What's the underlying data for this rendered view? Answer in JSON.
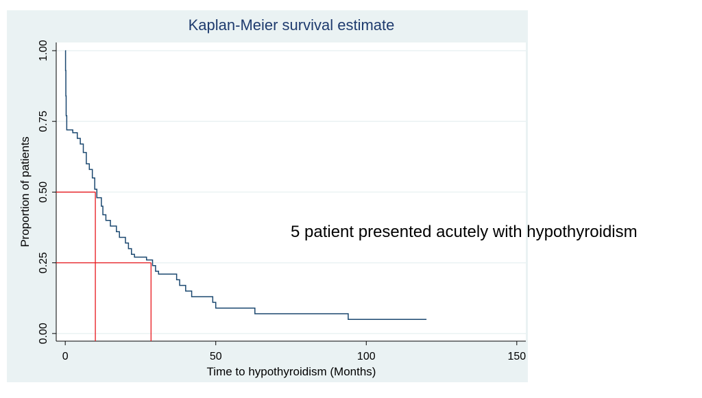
{
  "chart_data": {
    "type": "step",
    "title": "Kaplan-Meier survival estimate",
    "x_label": "Time to hypothyroidism (Months)",
    "y_label": "Proportion of patients",
    "annotation": "5 patient presented acutely with hypothyroidism",
    "color": "#1a476f",
    "reference_color": "#e8161b",
    "grid": true,
    "x": [
      0,
      0.1,
      0.2,
      0.3,
      0.5,
      2.5,
      4,
      5,
      6,
      7,
      8,
      9,
      9.8,
      10.5,
      12,
      12.5,
      13.5,
      15,
      17,
      18,
      20,
      21,
      22,
      23,
      27,
      29,
      30,
      31,
      37,
      38,
      40,
      42,
      49,
      50,
      63,
      94,
      120
    ],
    "values": [
      1.0,
      0.93,
      0.84,
      0.77,
      0.72,
      0.71,
      0.69,
      0.67,
      0.64,
      0.6,
      0.58,
      0.55,
      0.51,
      0.48,
      0.45,
      0.42,
      0.4,
      0.38,
      0.36,
      0.34,
      0.32,
      0.3,
      0.28,
      0.27,
      0.26,
      0.24,
      0.22,
      0.21,
      0.19,
      0.17,
      0.15,
      0.13,
      0.11,
      0.09,
      0.07,
      0.05,
      0.05
    ],
    "reference_lines": [
      {
        "x": 10,
        "y": 0.5
      },
      {
        "x": 28.5,
        "y": 0.25
      }
    ],
    "xlim": [
      -3,
      153
    ],
    "ylim": [
      -0.027,
      1.029
    ],
    "xticks": [
      0,
      50,
      100,
      150
    ],
    "yticks": [
      {
        "value": 0,
        "label": "0.00"
      },
      {
        "value": 0.25,
        "label": "0.25"
      },
      {
        "value": 0.5,
        "label": "0.50"
      },
      {
        "value": 0.75,
        "label": "0.75"
      },
      {
        "value": 1,
        "label": "1.00"
      }
    ]
  }
}
